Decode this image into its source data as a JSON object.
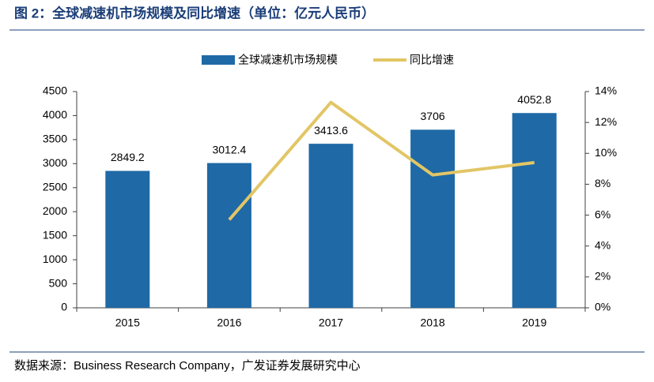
{
  "chart_data": {
    "type": "bar_line",
    "title": "图 2：全球减速机市场规模及同比增速（单位：亿元人民币）",
    "source": "数据来源：Business Research Company，广发证券发展研究中心",
    "categories": [
      "2015",
      "2016",
      "2017",
      "2018",
      "2019"
    ],
    "series": [
      {
        "name": "全球减速机市场规模",
        "type": "bar",
        "color": "#1f69a6",
        "values": [
          2849.2,
          3012.4,
          3413.6,
          3706,
          4052.8
        ]
      },
      {
        "name": "同比增速",
        "type": "line",
        "axis": "y2",
        "color": "#e2c665",
        "values": [
          null,
          5.7,
          13.3,
          8.6,
          9.4
        ]
      }
    ],
    "ylim": [
      0,
      4500
    ],
    "yticks": [
      0,
      500,
      1000,
      1500,
      2000,
      2500,
      3000,
      3500,
      4000,
      4500
    ],
    "y2lim": [
      0,
      14
    ],
    "y2ticks": [
      {
        "value": 0,
        "label": "0%"
      },
      {
        "value": 2,
        "label": "2%"
      },
      {
        "value": 4,
        "label": "4%"
      },
      {
        "value": 6,
        "label": "6%"
      },
      {
        "value": 8,
        "label": "8%"
      },
      {
        "value": 10,
        "label": "10%"
      },
      {
        "value": 12,
        "label": "12%"
      },
      {
        "value": 14,
        "label": "14%"
      }
    ],
    "legend": "top"
  }
}
